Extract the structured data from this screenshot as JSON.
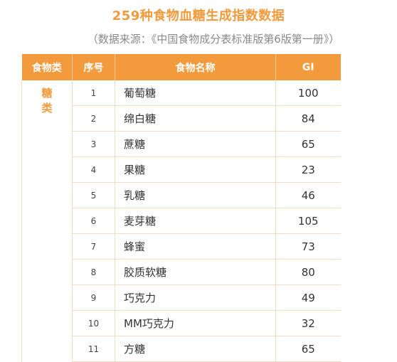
{
  "title": "259种食物血糖生成指数数据",
  "subtitle": "（数据来源：《中国食物成分表标准版第6版第一册》）",
  "table": {
    "headers": {
      "category": "食物类",
      "index": "序号",
      "name": "食物名称",
      "gi": "GI"
    },
    "category_chars": [
      "糖",
      "类"
    ],
    "rows": [
      {
        "index": "1",
        "name": "葡萄糖",
        "gi": "100"
      },
      {
        "index": "2",
        "name": "绵白糖",
        "gi": "84"
      },
      {
        "index": "3",
        "name": "蔗糖",
        "gi": "65"
      },
      {
        "index": "4",
        "name": "果糖",
        "gi": "23"
      },
      {
        "index": "5",
        "name": "乳糖",
        "gi": "46"
      },
      {
        "index": "6",
        "name": "麦芽糖",
        "gi": "105"
      },
      {
        "index": "7",
        "name": "蜂蜜",
        "gi": "73"
      },
      {
        "index": "8",
        "name": "胶质软糖",
        "gi": "80"
      },
      {
        "index": "9",
        "name": "巧克力",
        "gi": "49"
      },
      {
        "index": "10",
        "name": "MM巧克力",
        "gi": "32"
      },
      {
        "index": "11",
        "name": "方糖",
        "gi": "65"
      }
    ]
  },
  "colors": {
    "accent": "#f39a3c",
    "border": "#f7dcc2",
    "subtitle": "#8a8a8a"
  }
}
